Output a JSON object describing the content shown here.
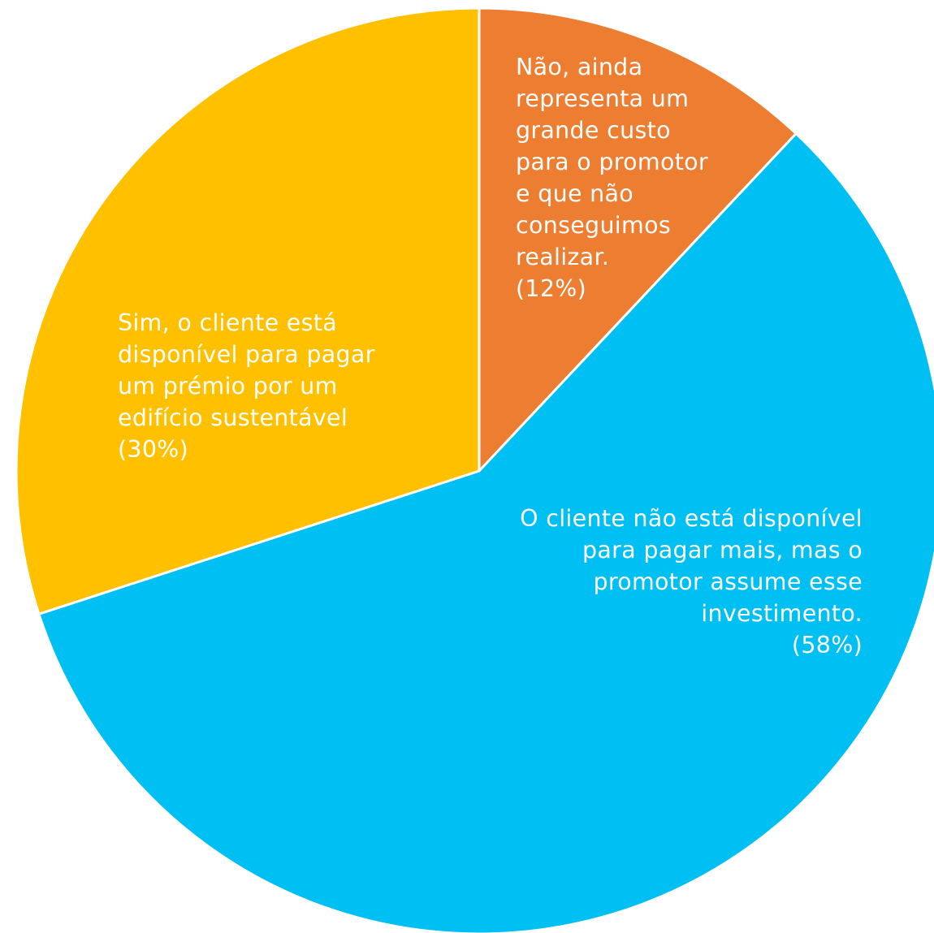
{
  "chart_data": {
    "type": "pie",
    "slices": [
      {
        "label": "Não, ainda\nrepresenta um\ngrande custo\npara o promotor\ne que não\nconseguimos\nrealizar.",
        "value": 12,
        "value_label": "(12%)",
        "color": "#ED7D31"
      },
      {
        "label": "O cliente não está disponível\npara pagar mais, mas o\npromotor assume esse\ninvestimento.",
        "value": 58,
        "value_label": "(58%)",
        "color": "#00BFF3"
      },
      {
        "label": "Sim, o cliente está\ndisponível para pagar\num prémio por um\nedifício sustentável",
        "value": 30,
        "value_label": "(30%)",
        "color": "#FFC000"
      }
    ],
    "start_angle_deg": 0,
    "direction": "clockwise",
    "legend": "none",
    "title": ""
  }
}
